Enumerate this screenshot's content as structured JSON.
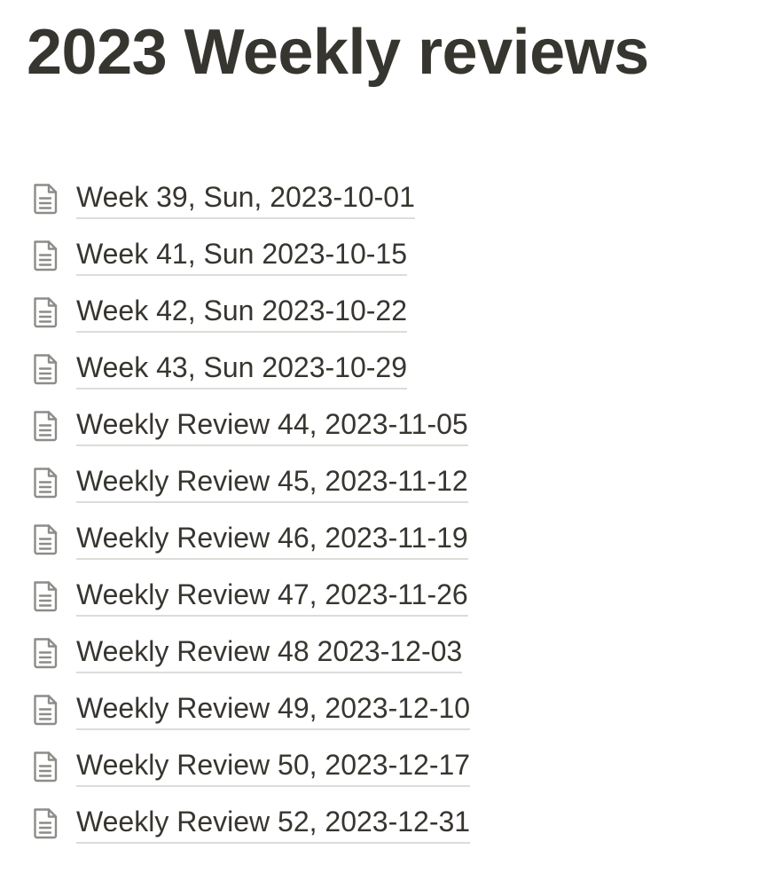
{
  "page": {
    "title": "2023 Weekly reviews"
  },
  "links": [
    {
      "label": "Week 39, Sun, 2023-10-01",
      "icon": "document-icon"
    },
    {
      "label": "Week 41, Sun 2023-10-15",
      "icon": "document-icon"
    },
    {
      "label": "Week 42, Sun 2023-10-22",
      "icon": "document-icon"
    },
    {
      "label": "Week 43, Sun 2023-10-29",
      "icon": "document-icon"
    },
    {
      "label": "Weekly Review 44, 2023-11-05",
      "icon": "document-icon"
    },
    {
      "label": "Weekly Review 45, 2023-11-12",
      "icon": "document-icon"
    },
    {
      "label": "Weekly Review 46, 2023-11-19",
      "icon": "document-icon"
    },
    {
      "label": "Weekly Review 47, 2023-11-26",
      "icon": "document-icon"
    },
    {
      "label": "Weekly Review 48 2023-12-03",
      "icon": "document-icon"
    },
    {
      "label": "Weekly Review 49, 2023-12-10",
      "icon": "document-icon"
    },
    {
      "label": "Weekly Review 50, 2023-12-17",
      "icon": "document-icon"
    },
    {
      "label": "Weekly Review 52, 2023-12-31",
      "icon": "document-icon"
    }
  ],
  "colors": {
    "text": "#37352f",
    "icon": "#8c8c88",
    "underline": "#dcdcd9",
    "background": "#ffffff"
  }
}
